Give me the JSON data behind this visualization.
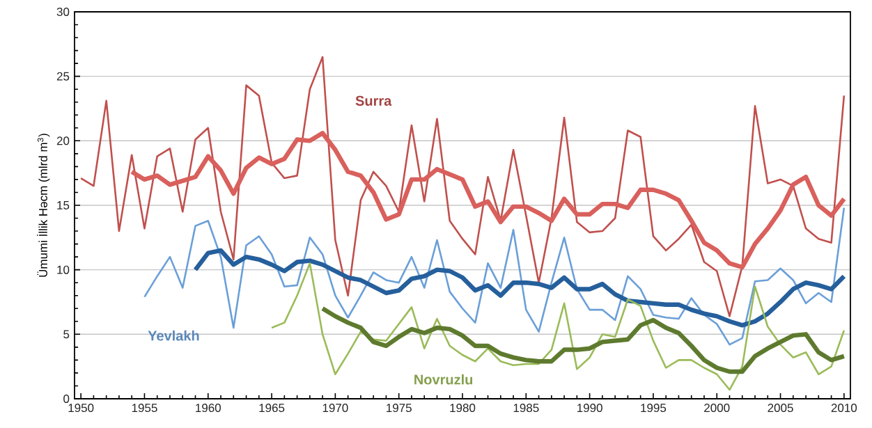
{
  "chart_data": {
    "type": "line",
    "ylabel": "Ümumi İllik Həcm (mlrd m$^{3}$)",
    "xlim": [
      1949.5,
      2010.5
    ],
    "xticks": [
      1950,
      1955,
      1960,
      1965,
      1970,
      1975,
      1980,
      1985,
      1990,
      1995,
      2000,
      2005,
      2010
    ],
    "ylim": [
      0,
      30
    ],
    "yticks": [
      0,
      5,
      10,
      15,
      20,
      25,
      30
    ],
    "grid": "y",
    "legend": false,
    "series": [
      {
        "name": "Surra",
        "color": "#c0504d",
        "x": [
          1950,
          1951,
          1952,
          1953,
          1954,
          1955,
          1956,
          1957,
          1958,
          1959,
          1960,
          1961,
          1962,
          1963,
          1964,
          1965,
          1966,
          1967,
          1968,
          1969,
          1970,
          1971,
          1972,
          1973,
          1974,
          1975,
          1976,
          1977,
          1978,
          1979,
          1980,
          1981,
          1982,
          1983,
          1984,
          1985,
          1986,
          1987,
          1988,
          1989,
          1990,
          1991,
          1992,
          1993,
          1994,
          1995,
          1996,
          1997,
          1998,
          1999,
          2000,
          2001,
          2002,
          2003,
          2004,
          2005,
          2006,
          2007,
          2008,
          2009,
          2010
        ],
        "values": [
          17.1,
          16.5,
          23.1,
          13.0,
          18.9,
          13.2,
          18.8,
          19.4,
          14.5,
          20.1,
          21.0,
          14.5,
          10.8,
          24.3,
          23.5,
          18.3,
          17.1,
          17.3,
          24.0,
          26.5,
          12.3,
          8.0,
          15.4,
          17.6,
          16.5,
          14.5,
          21.2,
          15.3,
          21.7,
          13.8,
          12.4,
          11.2,
          17.2,
          13.8,
          19.3,
          14.2,
          9.0,
          14.0,
          21.8,
          13.7,
          12.9,
          13.0,
          14.0,
          20.8,
          20.3,
          12.6,
          11.5,
          12.4,
          13.5,
          10.6,
          9.9,
          6.4,
          10.3,
          22.7,
          16.7,
          17.0,
          16.5,
          13.2,
          12.4,
          12.1,
          23.5
        ]
      },
      {
        "color": "#d9605c",
        "x": [
          1954,
          1955,
          1956,
          1957,
          1958,
          1959,
          1960,
          1961,
          1962,
          1963,
          1964,
          1965,
          1966,
          1967,
          1968,
          1969,
          1970,
          1971,
          1972,
          1973,
          1974,
          1975,
          1976,
          1977,
          1978,
          1979,
          1980,
          1981,
          1982,
          1983,
          1984,
          1985,
          1986,
          1987,
          1988,
          1989,
          1990,
          1991,
          1992,
          1993,
          1994,
          1995,
          1996,
          1997,
          1998,
          1999,
          2000,
          2001,
          2002,
          2003,
          2004,
          2005,
          2006,
          2007,
          2008,
          2009,
          2010
        ],
        "values": [
          17.6,
          17.0,
          17.3,
          16.6,
          16.9,
          17.2,
          18.8,
          17.7,
          15.9,
          17.9,
          18.7,
          18.2,
          18.6,
          20.1,
          20.0,
          20.6,
          19.3,
          17.6,
          17.3,
          16.0,
          13.9,
          14.3,
          17.0,
          17.0,
          17.8,
          17.4,
          17.0,
          14.9,
          15.3,
          13.7,
          14.9,
          14.9,
          14.4,
          13.8,
          15.5,
          14.3,
          14.3,
          15.1,
          15.1,
          14.8,
          16.2,
          16.2,
          15.9,
          15.4,
          13.8,
          12.1,
          11.5,
          10.5,
          10.2,
          12.0,
          13.2,
          14.6,
          16.6,
          17.2,
          15.0,
          14.2,
          15.5
        ]
      },
      {
        "name": "Yevlakh",
        "color": "#6a9fd8",
        "x": [
          1955,
          1956,
          1957,
          1958,
          1959,
          1960,
          1961,
          1962,
          1963,
          1964,
          1965,
          1966,
          1967,
          1968,
          1969,
          1970,
          1971,
          1972,
          1973,
          1974,
          1975,
          1976,
          1977,
          1978,
          1979,
          1980,
          1981,
          1982,
          1983,
          1984,
          1985,
          1986,
          1987,
          1988,
          1989,
          1990,
          1991,
          1992,
          1993,
          1994,
          1995,
          1996,
          1997,
          1998,
          1999,
          2000,
          2001,
          2002,
          2003,
          2004,
          2005,
          2006,
          2007,
          2008,
          2009,
          2010
        ],
        "values": [
          7.9,
          9.5,
          11.0,
          8.6,
          13.4,
          13.8,
          11.0,
          5.5,
          11.9,
          12.6,
          11.2,
          8.7,
          8.8,
          12.5,
          11.2,
          8.0,
          6.3,
          8.0,
          9.8,
          9.2,
          9.0,
          11.0,
          8.6,
          12.3,
          8.3,
          7.0,
          5.9,
          10.5,
          8.6,
          13.1,
          6.9,
          5.2,
          9.0,
          12.5,
          8.5,
          6.9,
          6.9,
          6.1,
          9.5,
          8.5,
          6.5,
          6.3,
          6.2,
          7.8,
          6.5,
          5.8,
          4.2,
          4.7,
          9.1,
          9.2,
          10.1,
          9.2,
          7.4,
          8.2,
          7.5,
          14.8
        ]
      },
      {
        "color": "#255f9c",
        "x": [
          1959,
          1960,
          1961,
          1962,
          1963,
          1964,
          1965,
          1966,
          1967,
          1968,
          1969,
          1970,
          1971,
          1972,
          1973,
          1974,
          1975,
          1976,
          1977,
          1978,
          1979,
          1980,
          1981,
          1982,
          1983,
          1984,
          1985,
          1986,
          1987,
          1988,
          1989,
          1990,
          1991,
          1992,
          1993,
          1994,
          1995,
          1996,
          1997,
          1998,
          1999,
          2000,
          2001,
          2002,
          2003,
          2004,
          2005,
          2006,
          2007,
          2008,
          2009,
          2010
        ],
        "values": [
          10.0,
          11.3,
          11.5,
          10.4,
          11.0,
          10.8,
          10.4,
          9.9,
          10.6,
          10.7,
          10.4,
          9.9,
          9.4,
          9.2,
          8.7,
          8.2,
          8.4,
          9.3,
          9.5,
          10.0,
          9.9,
          9.4,
          8.4,
          8.8,
          8.0,
          9.0,
          9.0,
          8.9,
          8.6,
          9.4,
          8.5,
          8.5,
          8.9,
          8.1,
          7.6,
          7.5,
          7.4,
          7.3,
          7.3,
          6.9,
          6.6,
          6.4,
          6.0,
          5.7,
          6.0,
          6.6,
          7.5,
          8.5,
          9.0,
          8.8,
          8.5,
          9.5
        ]
      },
      {
        "name": "Novruzlu",
        "color": "#9bbb59",
        "x": [
          1965,
          1966,
          1967,
          1968,
          1969,
          1970,
          1971,
          1972,
          1973,
          1974,
          1975,
          1976,
          1977,
          1978,
          1979,
          1980,
          1981,
          1982,
          1983,
          1984,
          1985,
          1986,
          1987,
          1988,
          1989,
          1990,
          1991,
          1992,
          1993,
          1994,
          1995,
          1996,
          1997,
          1998,
          1999,
          2000,
          2001,
          2002,
          2003,
          2004,
          2005,
          2006,
          2007,
          2008,
          2009,
          2010
        ],
        "values": [
          5.5,
          5.9,
          8.0,
          10.5,
          5.0,
          1.9,
          3.5,
          5.2,
          4.6,
          4.5,
          5.8,
          7.1,
          3.9,
          6.2,
          4.1,
          3.4,
          2.9,
          3.9,
          2.9,
          2.6,
          2.7,
          2.7,
          3.8,
          7.4,
          2.3,
          3.2,
          5.0,
          4.8,
          7.7,
          7.2,
          4.5,
          2.4,
          3.0,
          3.0,
          2.4,
          1.9,
          0.7,
          2.5,
          8.7,
          5.6,
          4.2,
          3.2,
          3.6,
          1.9,
          2.5,
          5.3
        ]
      },
      {
        "color": "#5e7a2e",
        "x": [
          1969,
          1970,
          1971,
          1972,
          1973,
          1974,
          1975,
          1976,
          1977,
          1978,
          1979,
          1980,
          1981,
          1982,
          1983,
          1984,
          1985,
          1986,
          1987,
          1988,
          1989,
          1990,
          1991,
          1992,
          1993,
          1994,
          1995,
          1996,
          1997,
          1998,
          1999,
          2000,
          2001,
          2002,
          2003,
          2004,
          2005,
          2006,
          2007,
          2008,
          2009,
          2010
        ],
        "values": [
          7.0,
          6.4,
          5.9,
          5.5,
          4.4,
          4.1,
          4.8,
          5.4,
          5.1,
          5.5,
          5.4,
          4.9,
          4.1,
          4.1,
          3.5,
          3.2,
          3.0,
          2.9,
          2.9,
          3.8,
          3.8,
          3.9,
          4.4,
          4.5,
          4.6,
          5.7,
          6.1,
          5.5,
          5.1,
          4.1,
          3.0,
          2.4,
          2.1,
          2.1,
          3.3,
          3.9,
          4.4,
          4.9,
          5.0,
          3.6,
          3.0,
          3.3
        ]
      }
    ]
  }
}
